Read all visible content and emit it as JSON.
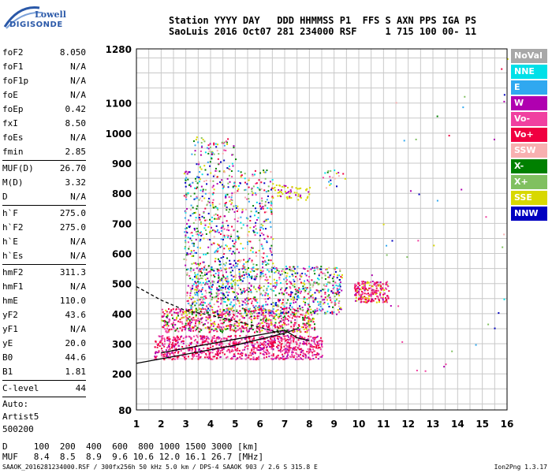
{
  "logo": {
    "line1": "Lowell",
    "line2": "DIGISONDE"
  },
  "header": {
    "line1": "Station YYYY DAY   DDD HHMMSS P1  FFS S AXN PPS IGA PS",
    "line2": "SaoLuis 2016 Oct07 281 234000 RSF     1 715 100 00- 11"
  },
  "params_a": [
    {
      "k": "foF2",
      "v": "8.050"
    },
    {
      "k": "foF1",
      "v": "N/A"
    },
    {
      "k": "foF1p",
      "v": "N/A"
    },
    {
      "k": "foE",
      "v": "N/A"
    },
    {
      "k": "foEp",
      "v": "0.42"
    },
    {
      "k": "fxI",
      "v": "8.50"
    },
    {
      "k": "foEs",
      "v": "N/A"
    },
    {
      "k": "fmin",
      "v": "2.85"
    }
  ],
  "params_b": [
    {
      "k": "MUF(D)",
      "v": "26.70"
    },
    {
      "k": "M(D)",
      "v": "3.32"
    },
    {
      "k": "D",
      "v": "N/A"
    }
  ],
  "params_c": [
    {
      "k": "h`F",
      "v": "275.0"
    },
    {
      "k": "h`F2",
      "v": "275.0"
    },
    {
      "k": "h`E",
      "v": "N/A"
    },
    {
      "k": "h`Es",
      "v": "N/A"
    }
  ],
  "params_d": [
    {
      "k": "hmF2",
      "v": "311.3"
    },
    {
      "k": "hmF1",
      "v": "N/A"
    },
    {
      "k": "hmE",
      "v": "110.0"
    },
    {
      "k": "yF2",
      "v": "43.6"
    },
    {
      "k": "yF1",
      "v": "N/A"
    },
    {
      "k": "yE",
      "v": "20.0"
    },
    {
      "k": "B0",
      "v": "44.6"
    },
    {
      "k": "B1",
      "v": "1.81"
    }
  ],
  "params_e": [
    {
      "k": "C-level",
      "v": "44"
    }
  ],
  "auto": [
    "Auto:",
    "Artist5",
    "500200"
  ],
  "legend": [
    {
      "label": "NoVal",
      "color": "#a8a8a8"
    },
    {
      "label": "NNE",
      "color": "#00e0e8"
    },
    {
      "label": "E",
      "color": "#30a8f0"
    },
    {
      "label": "W",
      "color": "#b000b0"
    },
    {
      "label": "Vo-",
      "color": "#f040a0"
    },
    {
      "label": "Vo+",
      "color": "#f00040"
    },
    {
      "label": "SSW",
      "color": "#f8b0b0"
    },
    {
      "label": "X-",
      "color": "#008000"
    },
    {
      "label": "X+",
      "color": "#80c060"
    },
    {
      "label": "SSE",
      "color": "#d8d800"
    },
    {
      "label": "NNW",
      "color": "#0000c0"
    }
  ],
  "muf_table": {
    "row1": "D     100  200  400  600  800 1000 1500 3000 [km]",
    "row2": "MUF   8.4  8.5  8.9  9.6 10.6 12.0 16.1 26.7 [MHz]"
  },
  "footer": {
    "left": "SAAOK_2016281234000.RSF / 300fx256h 50 kHz 5.0 km / DPS-4 SAAOK 903 / 2.6 S 315.8 E",
    "right": "Ion2Png 1.3.17"
  },
  "chart_data": {
    "type": "scatter",
    "x_ticks": [
      "1",
      "2",
      "3",
      "4",
      "5",
      "6",
      "7",
      "8",
      "9",
      "10",
      "11",
      "12",
      "13",
      "14",
      "15",
      "16"
    ],
    "y_ticks": [
      "80",
      "200",
      "300",
      "400",
      "500",
      "600",
      "700",
      "800",
      "900",
      "1000",
      "1100",
      "1280"
    ],
    "xlim": [
      1,
      16
    ],
    "ylim": [
      80,
      1280
    ],
    "grid": true,
    "legend_position": "right",
    "traces": [
      {
        "name": "virtual-height-trace",
        "x": [
          1.0,
          2.0,
          3.0,
          4.0,
          5.0,
          6.0,
          7.0,
          7.5
        ],
        "y": [
          235,
          250,
          265,
          280,
          295,
          315,
          335,
          350
        ]
      },
      {
        "name": "profile-curve",
        "x": [
          2.0,
          3.0,
          4.0,
          5.0,
          6.0,
          7.0,
          7.5,
          8.0
        ],
        "y": [
          270,
          285,
          300,
          315,
          330,
          345,
          320,
          310
        ]
      },
      {
        "name": "upper-dashed",
        "x": [
          1.0,
          2.0,
          3.0,
          4.0,
          5.0,
          6.0,
          7.0
        ],
        "y": [
          490,
          445,
          410,
          395,
          375,
          355,
          330
        ]
      }
    ]
  }
}
